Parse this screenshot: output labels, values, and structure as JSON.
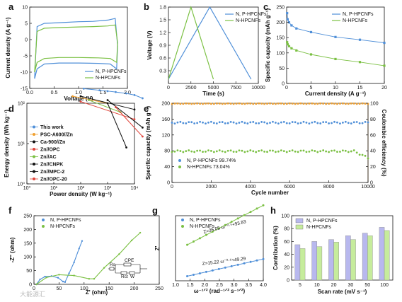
{
  "watermark": "大能源汇",
  "colors": {
    "blue": "#4f8fd8",
    "green": "#7bc043",
    "orange": "#f0a030",
    "red": "#e0443a",
    "black": "#111111"
  },
  "chart_data": [
    {
      "id": "a",
      "type": "line",
      "panel_label": "a",
      "xlabel": "Voltage (V)",
      "ylabel": "Current density (A g⁻¹)",
      "xlim": [
        0,
        2
      ],
      "ylim": [
        -15,
        10
      ],
      "xticks": [
        "0.0",
        "0.5",
        "1.0",
        "1.5",
        "2.0"
      ],
      "yticks": [
        "-15",
        "-10",
        "-5",
        "0",
        "5",
        "10"
      ],
      "legend": [
        "N, P-HPCNFs",
        "N-HPCNFs"
      ],
      "legend_position": "bottom-right",
      "series": [
        {
          "name": "N, P-HPCNFs",
          "color": "blue",
          "x": [
            0.1,
            0.15,
            0.3,
            0.6,
            1.0,
            1.4,
            1.65,
            1.78,
            1.8,
            1.75,
            1.6,
            1.3,
            1.0,
            0.6,
            0.3,
            0.15,
            0.1
          ],
          "y": [
            -12,
            -9,
            -7.5,
            -7.2,
            -7.2,
            -7.3,
            -7.5,
            -9,
            -2,
            6.5,
            6,
            5.6,
            5.5,
            5.2,
            5,
            4,
            -12
          ]
        },
        {
          "name": "N-HPCNFs",
          "color": "green",
          "x": [
            0.1,
            0.15,
            0.3,
            0.6,
            1.0,
            1.4,
            1.65,
            1.78,
            1.8,
            1.75,
            1.6,
            1.3,
            1.0,
            0.6,
            0.3,
            0.15,
            0.1
          ],
          "y": [
            -10,
            -7,
            -5.8,
            -5.5,
            -5.5,
            -5.6,
            -5.8,
            -7,
            -1,
            4.5,
            4.2,
            4,
            3.9,
            3.7,
            3.5,
            2.5,
            -10
          ]
        }
      ]
    },
    {
      "id": "b",
      "type": "line",
      "panel_label": "b",
      "xlabel": "Time (s)",
      "ylabel": "Voltage (V)",
      "xlim": [
        0,
        10000
      ],
      "ylim": [
        0,
        1.8
      ],
      "xticks": [
        "0",
        "2500",
        "5000",
        "7500",
        "10000"
      ],
      "yticks": [
        "0.3",
        "0.6",
        "0.9",
        "1.2",
        "1.5",
        "1.8"
      ],
      "legend": [
        "N, P-HPCNFs",
        "N-HPCNFs"
      ],
      "legend_position": "top-right",
      "series": [
        {
          "name": "N, P-HPCNFs",
          "color": "blue",
          "x": [
            0,
            4600,
            9200
          ],
          "y": [
            0.1,
            1.8,
            0.1
          ]
        },
        {
          "name": "N-HPCNFs",
          "color": "green",
          "x": [
            0,
            2500,
            5000
          ],
          "y": [
            0.1,
            1.8,
            0.1
          ]
        }
      ]
    },
    {
      "id": "c",
      "type": "line",
      "panel_label": "c",
      "xlabel": "Current density (A g⁻¹)",
      "ylabel": "Specific capacity (mAh g⁻¹)",
      "xlim": [
        0,
        20
      ],
      "ylim": [
        0,
        250
      ],
      "xticks": [
        "0",
        "5",
        "10",
        "15",
        "20"
      ],
      "yticks": [
        "0",
        "50",
        "100",
        "150",
        "200",
        "250"
      ],
      "legend": [
        "N, P-HPCNFs",
        "N-HPCNFs"
      ],
      "legend_position": "top-right",
      "series": [
        {
          "name": "N, P-HPCNFs",
          "color": "blue",
          "x": [
            0.1,
            0.2,
            0.5,
            1,
            2,
            5,
            10,
            15,
            20
          ],
          "y": [
            230,
            210,
            200,
            190,
            180,
            168,
            152,
            143,
            133
          ]
        },
        {
          "name": "N-HPCNFs",
          "color": "green",
          "x": [
            0.1,
            0.2,
            0.5,
            1,
            2,
            5,
            10,
            15,
            20
          ],
          "y": [
            135,
            128,
            122,
            115,
            108,
            95,
            80,
            70,
            58
          ]
        }
      ]
    },
    {
      "id": "d",
      "type": "line",
      "panel_label": "d",
      "log_scale": true,
      "xlabel": "Power density (W kg⁻¹)",
      "ylabel": "Energy density (Wh kg⁻¹)",
      "xlim_exp": [
        0,
        4
      ],
      "ylim_exp": [
        0,
        2
      ],
      "xticks": [
        "10⁰",
        "10¹",
        "10²",
        "10³",
        "10⁴"
      ],
      "yticks": [
        "10⁰",
        "10¹",
        "10²"
      ],
      "legend_position": "left",
      "series": [
        {
          "name": "This work",
          "color": "blue",
          "marker": "dot",
          "x": [
            130,
            500,
            1000,
            2000,
            5000,
            10000,
            20000
          ],
          "y": [
            230,
            210,
            200,
            190,
            175,
            160,
            133
          ]
        },
        {
          "name": "PSC-A600//Zn",
          "color": "orange",
          "x": [
            50,
            1000
          ],
          "y": [
            150,
            100
          ]
        },
        {
          "name": "Ca-900//Zn",
          "color": "black",
          "x": [
            100,
            10000
          ],
          "y": [
            150,
            70
          ]
        },
        {
          "name": "Zn//OPC",
          "color": "red",
          "x": [
            100,
            10000
          ],
          "y": [
            110,
            40
          ]
        },
        {
          "name": "Zn//AC",
          "color": "green",
          "x": [
            200,
            3000
          ],
          "y": [
            120,
            60
          ]
        },
        {
          "name": "Zn//CNPK",
          "color": "black",
          "x": [
            1000,
            5000
          ],
          "y": [
            100,
            8
          ]
        },
        {
          "name": "Zn//MPC-2",
          "color": "black",
          "x": [
            1000,
            20000
          ],
          "y": [
            120,
            25
          ]
        },
        {
          "name": "Zn//OPC-20",
          "color": "red",
          "x": [
            2000,
            20000
          ],
          "y": [
            80,
            15
          ]
        }
      ]
    },
    {
      "id": "e",
      "type": "scatter",
      "panel_label": "e",
      "xlabel": "Cycle number",
      "ylabel": "Specific capacity (mAh g⁻¹)",
      "ylabel2": "Coulombic efficiency (%)",
      "xlim": [
        0,
        10000
      ],
      "ylim": [
        0,
        200
      ],
      "ylim2": [
        0,
        100
      ],
      "xticks": [
        "0",
        "2000",
        "4000",
        "6000",
        "8000",
        "10000"
      ],
      "yticks": [
        "0",
        "40",
        "80",
        "120",
        "160",
        "200"
      ],
      "yticks2": [
        "0",
        "20",
        "40",
        "60",
        "80",
        "100"
      ],
      "legend": [
        "N, P-HPCNFs 99.74%",
        "N-HPCNFs 73.04%"
      ],
      "legend_position": "bottom-left",
      "series": [
        {
          "name": "N, P-HPCNFs 99.74%",
          "color": "blue",
          "level": 151
        },
        {
          "name": "N-HPCNFs 73.04%",
          "color": "green",
          "level": 79,
          "end_level": 62
        },
        {
          "name": "Coulombic efficiency",
          "color": "orange",
          "level_right": 99.5
        }
      ]
    },
    {
      "id": "f",
      "type": "line",
      "panel_label": "f",
      "xlabel": "Z' (ohm)",
      "ylabel": "-Z'' (ohm)",
      "xlim": [
        0,
        250
      ],
      "ylim": [
        0,
        250
      ],
      "xticks": [
        "0",
        "50",
        "100",
        "150",
        "200",
        "250"
      ],
      "yticks": [
        "0",
        "50",
        "100",
        "150",
        "200",
        "250"
      ],
      "legend": [
        "N, P-HPCNFs",
        "N-HPCNFs"
      ],
      "legend_position": "top-left",
      "circuit_labels": [
        "Rs",
        "CPE",
        "Rct",
        "W"
      ],
      "series": [
        {
          "name": "N, P-HPCNFs",
          "color": "blue",
          "x": [
            5,
            12,
            22,
            35,
            48,
            58,
            62,
            70,
            80,
            90,
            96
          ],
          "y": [
            0,
            18,
            28,
            30,
            24,
            10,
            8,
            40,
            80,
            130,
            158
          ]
        },
        {
          "name": "N-HPCNFs",
          "color": "green",
          "x": [
            5,
            25,
            50,
            80,
            110,
            120,
            140,
            170,
            195,
            212
          ],
          "y": [
            0,
            25,
            35,
            32,
            20,
            20,
            60,
            110,
            160,
            188
          ]
        }
      ]
    },
    {
      "id": "g",
      "type": "scatter",
      "panel_label": "g",
      "xlabel": "ω⁻¹ᐟ² (rad⁻¹ᐟ² s⁻¹ᐟ²)",
      "ylabel": "Z'",
      "xlim": [
        1.0,
        4.0
      ],
      "ylim": [
        60,
        210
      ],
      "xticks": [
        "1.5",
        "2.0",
        "2.5",
        "3.0",
        "3.5",
        "4.0"
      ],
      "legend": [
        "N, P-HPCNFs",
        "N-HPCNFs"
      ],
      "legend_position": "top-left",
      "annotations": [
        "Z=35.05 ω⁻⁰·⁵+93.83",
        "Z=15.22 ω⁻⁰·⁵+49.29"
      ],
      "series": [
        {
          "name": "N, P-HPCNFs",
          "color": "blue",
          "slope": 15.22,
          "intercept": 49.29,
          "xrange": [
            1.4,
            4.0
          ]
        },
        {
          "name": "N-HPCNFs",
          "color": "green",
          "slope": 35.05,
          "intercept": 93.83,
          "xrange": [
            1.4,
            4.0
          ]
        }
      ]
    },
    {
      "id": "h",
      "type": "bar",
      "panel_label": "h",
      "xlabel": "Scan rate (mV s⁻¹)",
      "ylabel": "Contribution (%)",
      "ylim": [
        0,
        100
      ],
      "yticks": [
        "0",
        "20",
        "40",
        "60",
        "80",
        "100"
      ],
      "categories": [
        "5",
        "10",
        "20",
        "30",
        "50",
        "100"
      ],
      "legend": [
        "N, P-HPCNFs",
        "N-HPCNFs"
      ],
      "legend_position": "top-left",
      "series": [
        {
          "name": "N, P-HPCNFs",
          "color": "#b8b8ee",
          "values": [
            55,
            60,
            63,
            69,
            73,
            82
          ]
        },
        {
          "name": "N-HPCNFs",
          "color": "#c6ec9c",
          "values": [
            49,
            52,
            59,
            63,
            69,
            77
          ]
        }
      ]
    }
  ]
}
